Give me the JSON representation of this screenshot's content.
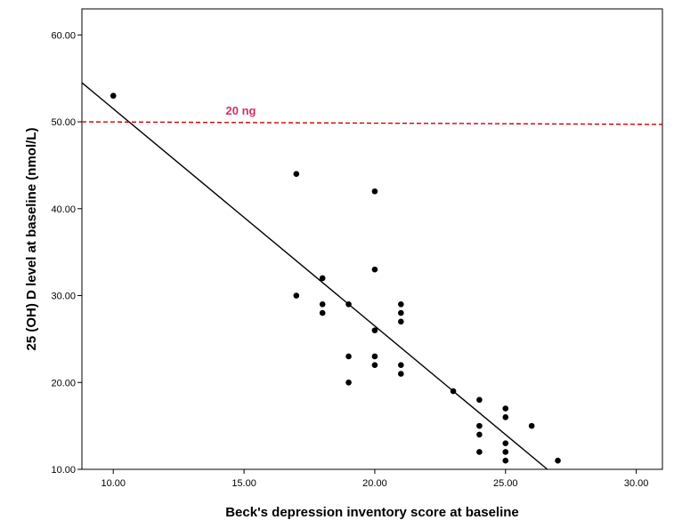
{
  "chart_data": {
    "type": "scatter",
    "title": "",
    "xlabel": "Beck's depression inventory score at baseline",
    "ylabel": "25 (OH) D level at baseline (nmol/L)",
    "xlim": [
      8.8,
      31.0
    ],
    "ylim": [
      10.0,
      63.0
    ],
    "x_ticks": [
      10,
      15,
      20,
      25,
      30
    ],
    "x_tick_labels": [
      "10.00",
      "15.00",
      "20.00",
      "25.00",
      "30.00"
    ],
    "y_ticks": [
      10,
      20,
      30,
      40,
      50,
      60
    ],
    "y_tick_labels": [
      "10.00",
      "20.00",
      "30.00",
      "40.00",
      "50.00",
      "60.00"
    ],
    "grid": false,
    "points": [
      {
        "x": 10,
        "y": 53
      },
      {
        "x": 17,
        "y": 44
      },
      {
        "x": 17,
        "y": 30
      },
      {
        "x": 18,
        "y": 32
      },
      {
        "x": 18,
        "y": 29
      },
      {
        "x": 18,
        "y": 28
      },
      {
        "x": 19,
        "y": 29
      },
      {
        "x": 19,
        "y": 23
      },
      {
        "x": 19,
        "y": 20
      },
      {
        "x": 20,
        "y": 42
      },
      {
        "x": 20,
        "y": 33
      },
      {
        "x": 20,
        "y": 26
      },
      {
        "x": 20,
        "y": 23
      },
      {
        "x": 20,
        "y": 22
      },
      {
        "x": 21,
        "y": 29
      },
      {
        "x": 21,
        "y": 28
      },
      {
        "x": 21,
        "y": 27
      },
      {
        "x": 21,
        "y": 22
      },
      {
        "x": 21,
        "y": 21
      },
      {
        "x": 23,
        "y": 19
      },
      {
        "x": 24,
        "y": 18
      },
      {
        "x": 24,
        "y": 15
      },
      {
        "x": 24,
        "y": 14
      },
      {
        "x": 24,
        "y": 12
      },
      {
        "x": 25,
        "y": 17
      },
      {
        "x": 25,
        "y": 16
      },
      {
        "x": 25,
        "y": 13
      },
      {
        "x": 25,
        "y": 12
      },
      {
        "x": 25,
        "y": 11
      },
      {
        "x": 26,
        "y": 15
      },
      {
        "x": 27,
        "y": 11
      }
    ],
    "fit_line": {
      "x0": 8.8,
      "y0": 54.5,
      "x1": 26.6,
      "y1": 10.0
    },
    "reference_line": {
      "y_start": 50.0,
      "y_end": 49.7,
      "label": "20 ng",
      "label_x": 14.3,
      "color": "#cc0000"
    },
    "colors": {
      "points": "#000000",
      "fit_line": "#000000",
      "reference_line": "#cc0000",
      "reference_label": "#cc3366"
    }
  }
}
